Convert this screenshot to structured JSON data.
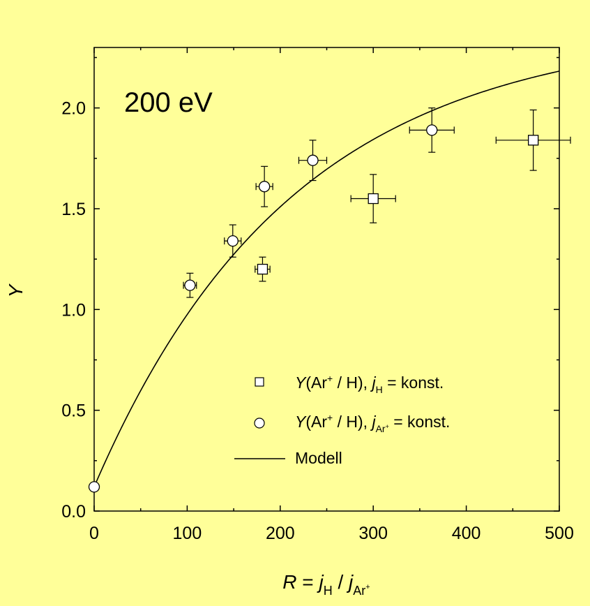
{
  "colors": {
    "background": "#ffff99",
    "plot_background": "#ffff99",
    "marker_fill": "#ffffff",
    "line": "#000000"
  },
  "chart_data": {
    "type": "scatter",
    "annotation": "200 eV",
    "xlabel": {
      "var": "R",
      "eq": " = ",
      "j": "j",
      "sub_h": "H",
      "slash": " / ",
      "j2": "j",
      "sub_ar": "Ar",
      "sup_plus": "+"
    },
    "ylabel": "Y",
    "xlim": [
      0,
      500
    ],
    "ylim": [
      0.0,
      2.3
    ],
    "x_ticks": [
      "0",
      "100",
      "200",
      "300",
      "400",
      "500"
    ],
    "y_ticks": [
      "0.0",
      "0.5",
      "1.0",
      "1.5",
      "2.0"
    ],
    "x_tick_values": [
      0,
      100,
      200,
      300,
      400,
      500
    ],
    "y_tick_values": [
      0.0,
      0.5,
      1.0,
      1.5,
      2.0
    ],
    "series": [
      {
        "name": "Y(Ar+ / H), jH = konst.",
        "marker": "square",
        "points": [
          {
            "x": 181,
            "y": 1.2,
            "xerr": 8,
            "yerr": 0.06
          },
          {
            "x": 300,
            "y": 1.55,
            "xerr": 24,
            "yerr": 0.12
          },
          {
            "x": 472,
            "y": 1.84,
            "xerr": 40,
            "yerr": 0.15
          }
        ]
      },
      {
        "name": "Y(Ar+ / H), jAr+ = konst.",
        "marker": "circle",
        "points": [
          {
            "x": 0,
            "y": 0.12,
            "xerr": 0,
            "yerr": 0
          },
          {
            "x": 103,
            "y": 1.12,
            "xerr": 7,
            "yerr": 0.06
          },
          {
            "x": 149,
            "y": 1.34,
            "xerr": 9,
            "yerr": 0.08
          },
          {
            "x": 183,
            "y": 1.61,
            "xerr": 9,
            "yerr": 0.1
          },
          {
            "x": 235,
            "y": 1.74,
            "xerr": 15,
            "yerr": 0.1
          },
          {
            "x": 363,
            "y": 1.89,
            "xerr": 24,
            "yerr": 0.11
          }
        ]
      },
      {
        "name": "Modell",
        "marker": "line",
        "model": {
          "y0": 0.12,
          "ymax": 2.4,
          "rate": 0.0047
        }
      }
    ],
    "legend": {
      "position": "bottom-right",
      "entries": [
        {
          "marker": "square",
          "pre": "Y",
          "text1": "(Ar",
          "sup": "+",
          "text2": " / H), ",
          "j": "j",
          "sub": "H",
          "tail": " = konst."
        },
        {
          "marker": "circle",
          "pre": "Y",
          "text1": "(Ar",
          "sup": "+",
          "text2": " / H), ",
          "j": "j",
          "sub": "Ar",
          "subsup": "+",
          "tail": " = konst."
        },
        {
          "marker": "line",
          "label": "Modell"
        }
      ]
    }
  }
}
